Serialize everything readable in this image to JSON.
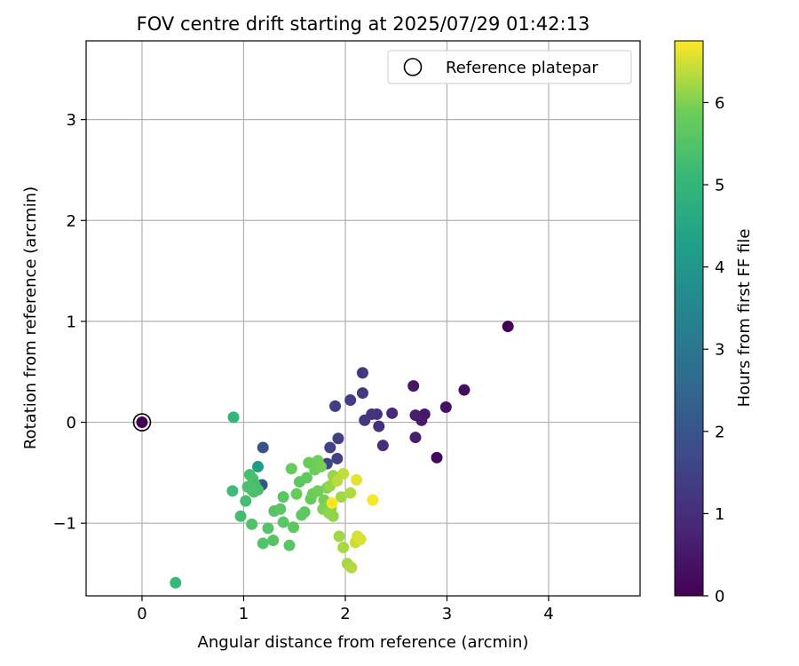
{
  "chart_data": {
    "type": "scatter",
    "title": "FOV centre drift starting at 2025/07/29 01:42:13",
    "xlabel": "Angular distance from reference (arcmin)",
    "ylabel": "Rotation from reference (arcmin)",
    "xlim": [
      -0.55,
      4.9
    ],
    "ylim": [
      -1.72,
      3.78
    ],
    "xticks": [
      "0",
      "1",
      "2",
      "3",
      "4"
    ],
    "yticks": [
      "−1",
      "0",
      "1",
      "2",
      "3"
    ],
    "grid": true,
    "legend": {
      "position": "top-right",
      "entries": [
        "Reference platepar"
      ]
    },
    "colorbar": {
      "label": "Hours from first FF file",
      "range": [
        0,
        6.75
      ],
      "ticks": [
        "0",
        "1",
        "2",
        "3",
        "4",
        "5",
        "6"
      ],
      "colormap": "viridis"
    },
    "reference": {
      "x": 0,
      "y": 0
    },
    "points": [
      [
        3.6,
        0.95,
        0.0
      ],
      [
        2.9,
        -0.35,
        0.2
      ],
      [
        3.17,
        0.32,
        0.3
      ],
      [
        2.99,
        0.15,
        0.35
      ],
      [
        2.67,
        0.36,
        0.45
      ],
      [
        2.78,
        0.08,
        0.5
      ],
      [
        2.75,
        0.02,
        0.55
      ],
      [
        2.69,
        0.07,
        0.6
      ],
      [
        2.69,
        -0.15,
        0.65
      ],
      [
        2.46,
        0.09,
        0.9
      ],
      [
        2.37,
        -0.23,
        1.0
      ],
      [
        2.33,
        -0.04,
        1.05
      ],
      [
        2.31,
        0.08,
        1.1
      ],
      [
        2.26,
        0.08,
        1.15
      ],
      [
        2.19,
        0.02,
        1.2
      ],
      [
        2.17,
        0.49,
        1.25
      ],
      [
        2.17,
        0.29,
        1.3
      ],
      [
        2.05,
        0.22,
        1.35
      ],
      [
        1.9,
        0.16,
        1.4
      ],
      [
        1.93,
        -0.16,
        1.45
      ],
      [
        1.92,
        -0.36,
        1.5
      ],
      [
        1.85,
        -0.25,
        1.55
      ],
      [
        1.82,
        -0.41,
        1.6
      ],
      [
        1.19,
        -0.25,
        1.9
      ],
      [
        1.18,
        -0.62,
        2.0
      ],
      [
        1.14,
        -0.44,
        4.2
      ],
      [
        0.9,
        0.05,
        5.0
      ],
      [
        0.33,
        -1.59,
        5.1
      ],
      [
        0.89,
        -0.68,
        5.2
      ],
      [
        0.97,
        -0.93,
        5.3
      ],
      [
        1.02,
        -0.78,
        5.3
      ],
      [
        1.06,
        -0.52,
        5.35
      ],
      [
        1.09,
        -0.56,
        5.35
      ],
      [
        1.11,
        -0.62,
        5.3
      ],
      [
        1.1,
        -0.69,
        5.4
      ],
      [
        1.14,
        -0.67,
        5.35
      ],
      [
        1.08,
        -0.67,
        5.4
      ],
      [
        1.04,
        -0.64,
        5.4
      ],
      [
        1.08,
        -1.01,
        5.45
      ],
      [
        1.19,
        -1.2,
        5.5
      ],
      [
        1.24,
        -1.05,
        5.5
      ],
      [
        1.29,
        -1.17,
        5.55
      ],
      [
        1.3,
        -0.88,
        5.55
      ],
      [
        1.36,
        -0.86,
        5.6
      ],
      [
        1.39,
        -0.74,
        5.6
      ],
      [
        1.39,
        -0.99,
        5.6
      ],
      [
        1.45,
        -1.22,
        5.6
      ],
      [
        1.49,
        -1.04,
        5.65
      ],
      [
        1.55,
        -0.59,
        5.65
      ],
      [
        1.57,
        -0.92,
        5.7
      ],
      [
        1.6,
        -0.89,
        5.7
      ],
      [
        1.62,
        -0.55,
        5.7
      ],
      [
        1.66,
        -0.76,
        5.75
      ],
      [
        1.47,
        -0.46,
        5.75
      ],
      [
        1.52,
        -0.71,
        5.8
      ],
      [
        1.64,
        -0.4,
        5.8
      ],
      [
        1.68,
        -0.71,
        5.85
      ],
      [
        1.7,
        -0.47,
        5.85
      ],
      [
        1.73,
        -0.38,
        5.9
      ],
      [
        1.73,
        -0.68,
        5.9
      ],
      [
        1.76,
        -0.44,
        5.95
      ],
      [
        1.79,
        -0.77,
        5.95
      ],
      [
        1.82,
        -0.65,
        6.0
      ],
      [
        1.78,
        -0.86,
        6.0
      ],
      [
        1.86,
        -0.85,
        6.05
      ],
      [
        1.84,
        -0.9,
        6.1
      ],
      [
        1.88,
        -0.93,
        6.1
      ],
      [
        1.85,
        -0.63,
        6.15
      ],
      [
        1.88,
        -0.53,
        6.15
      ],
      [
        1.94,
        -1.13,
        6.2
      ],
      [
        1.96,
        -0.74,
        6.2
      ],
      [
        1.98,
        -1.24,
        6.25
      ],
      [
        2.02,
        -1.4,
        6.25
      ],
      [
        2.06,
        -1.44,
        6.3
      ],
      [
        2.05,
        -0.7,
        6.3
      ],
      [
        1.92,
        -0.58,
        6.35
      ],
      [
        1.98,
        -0.51,
        6.4
      ],
      [
        2.1,
        -1.19,
        6.45
      ],
      [
        2.12,
        -1.13,
        6.5
      ],
      [
        2.15,
        -1.16,
        6.55
      ],
      [
        2.11,
        -0.57,
        6.6
      ],
      [
        2.27,
        -0.77,
        6.7
      ],
      [
        1.87,
        -0.8,
        6.75
      ]
    ]
  }
}
